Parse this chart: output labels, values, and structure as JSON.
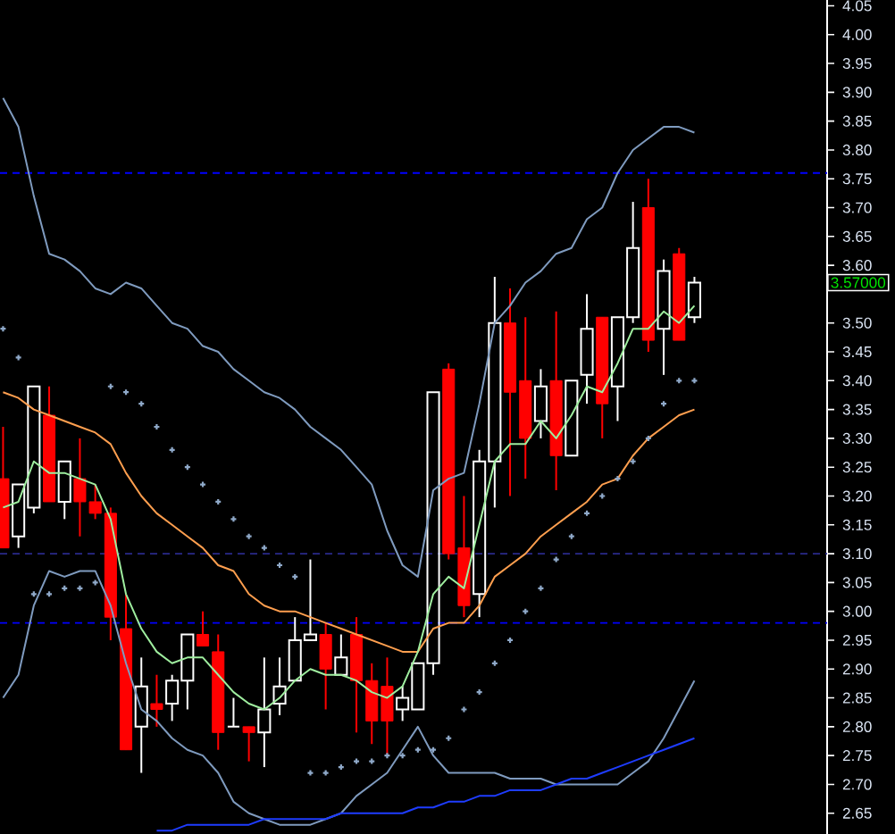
{
  "chart_data": {
    "type": "candlestick",
    "categories": [
      null,
      null,
      null,
      null,
      null,
      null,
      null,
      null,
      null,
      null,
      null,
      null,
      null,
      null,
      null,
      null,
      null,
      null,
      null,
      null,
      null,
      null,
      null,
      null,
      null,
      null,
      null,
      null,
      null,
      null,
      null,
      null,
      null,
      null,
      null,
      null,
      null,
      null,
      null,
      null,
      null,
      null,
      null,
      null,
      null,
      null
    ],
    "ohlc": [
      [
        3.23,
        3.32,
        3.11,
        3.11
      ],
      [
        3.13,
        3.22,
        3.11,
        3.22
      ],
      [
        3.18,
        3.39,
        3.17,
        3.39
      ],
      [
        3.34,
        3.39,
        3.19,
        3.19
      ],
      [
        3.19,
        3.26,
        3.16,
        3.26
      ],
      [
        3.23,
        3.3,
        3.13,
        3.19
      ],
      [
        3.19,
        3.22,
        3.16,
        3.17
      ],
      [
        3.17,
        3.18,
        2.95,
        2.99
      ],
      [
        2.97,
        3.03,
        2.76,
        2.76
      ],
      [
        2.8,
        2.92,
        2.72,
        2.87
      ],
      [
        2.84,
        2.89,
        2.8,
        2.83
      ],
      [
        2.84,
        2.89,
        2.81,
        2.88
      ],
      [
        2.88,
        2.96,
        2.83,
        2.96
      ],
      [
        2.96,
        3.0,
        2.94,
        2.94
      ],
      [
        2.93,
        2.96,
        2.76,
        2.79
      ],
      [
        2.8,
        2.85,
        2.8,
        2.8
      ],
      [
        2.8,
        2.8,
        2.74,
        2.79
      ],
      [
        2.79,
        2.92,
        2.73,
        2.83
      ],
      [
        2.84,
        2.92,
        2.82,
        2.87
      ],
      [
        2.88,
        2.99,
        2.88,
        2.95
      ],
      [
        2.95,
        3.09,
        2.95,
        2.96
      ],
      [
        2.96,
        2.98,
        2.83,
        2.9
      ],
      [
        2.89,
        2.96,
        2.89,
        2.92
      ],
      [
        2.96,
        2.99,
        2.79,
        2.88
      ],
      [
        2.88,
        2.91,
        2.77,
        2.81
      ],
      [
        2.87,
        2.92,
        2.75,
        2.81
      ],
      [
        2.83,
        2.87,
        2.81,
        2.85
      ],
      [
        2.83,
        2.91,
        2.83,
        2.91
      ],
      [
        2.91,
        3.38,
        2.89,
        3.38
      ],
      [
        3.42,
        3.43,
        3.09,
        3.1
      ],
      [
        3.11,
        3.2,
        2.99,
        3.01
      ],
      [
        3.03,
        3.28,
        2.99,
        3.26
      ],
      [
        3.26,
        3.58,
        3.18,
        3.5
      ],
      [
        3.5,
        3.56,
        3.2,
        3.38
      ],
      [
        3.4,
        3.51,
        3.23,
        3.3
      ],
      [
        3.33,
        3.42,
        3.3,
        3.39
      ],
      [
        3.4,
        3.52,
        3.21,
        3.27
      ],
      [
        3.27,
        3.4,
        3.27,
        3.4
      ],
      [
        3.41,
        3.55,
        3.36,
        3.49
      ],
      [
        3.51,
        3.51,
        3.3,
        3.36
      ],
      [
        3.39,
        3.51,
        3.33,
        3.51
      ],
      [
        3.51,
        3.71,
        3.5,
        3.63
      ],
      [
        3.7,
        3.75,
        3.45,
        3.47
      ],
      [
        3.49,
        3.61,
        3.41,
        3.59
      ],
      [
        3.62,
        3.63,
        3.47,
        3.47
      ],
      [
        3.51,
        3.58,
        3.5,
        3.57
      ]
    ],
    "colors": [
      "#ff0000",
      "#ffffff",
      "#ffffff",
      "#ff0000",
      "#ffffff",
      "#ff0000",
      "#ff0000",
      "#ff0000",
      "#ff0000",
      "#ffffff",
      "#ff0000",
      "#ffffff",
      "#ffffff",
      "#ff0000",
      "#ff0000",
      "#ffffff",
      "#ff0000",
      "#ffffff",
      "#ffffff",
      "#ffffff",
      "#ffffff",
      "#ff0000",
      "#ffffff",
      "#ff0000",
      "#ff0000",
      "#ff0000",
      "#ffffff",
      "#ffffff",
      "#ffffff",
      "#ff0000",
      "#ff0000",
      "#ffffff",
      "#ffffff",
      "#ff0000",
      "#ff0000",
      "#ffffff",
      "#ff0000",
      "#ffffff",
      "#ffffff",
      "#ff0000",
      "#ffffff",
      "#ffffff",
      "#ff0000",
      "#ffffff",
      "#ff0000",
      "#ffffff"
    ],
    "series": [
      {
        "type": "line",
        "color": "#7f9bbf",
        "values": [
          3.89,
          3.84,
          3.72,
          3.62,
          3.61,
          3.59,
          3.56,
          3.55,
          3.57,
          3.56,
          3.53,
          3.5,
          3.49,
          3.46,
          3.45,
          3.42,
          3.4,
          3.38,
          3.37,
          3.35,
          3.32,
          3.3,
          3.28,
          3.25,
          3.22,
          3.14,
          3.08,
          3.06,
          3.21,
          3.23,
          3.24,
          3.36,
          3.5,
          3.53,
          3.57,
          3.59,
          3.62,
          3.63,
          3.68,
          3.7,
          3.76,
          3.8,
          3.82,
          3.84,
          3.84,
          3.83
        ]
      },
      {
        "type": "line",
        "color": "#7f9bbf",
        "values": [
          2.85,
          2.89,
          3.01,
          3.07,
          3.06,
          3.07,
          3.07,
          3.01,
          2.91,
          2.83,
          2.81,
          2.78,
          2.76,
          2.75,
          2.72,
          2.67,
          2.65,
          2.64,
          2.63,
          2.63,
          2.63,
          2.64,
          2.65,
          2.68,
          2.7,
          2.72,
          2.76,
          2.8,
          2.75,
          2.72,
          2.72,
          2.72,
          2.72,
          2.71,
          2.71,
          2.71,
          2.7,
          2.7,
          2.7,
          2.7,
          2.7,
          2.72,
          2.74,
          2.78,
          2.83,
          2.88
        ]
      },
      {
        "type": "line",
        "color": "#ff9f4f",
        "values": [
          3.38,
          3.37,
          3.35,
          3.34,
          3.33,
          3.32,
          3.31,
          3.29,
          3.24,
          3.2,
          3.17,
          3.15,
          3.13,
          3.11,
          3.08,
          3.07,
          3.03,
          3.01,
          3.0,
          3.0,
          2.99,
          2.98,
          2.97,
          2.96,
          2.95,
          2.94,
          2.93,
          2.93,
          2.97,
          2.98,
          2.98,
          3.01,
          3.06,
          3.08,
          3.1,
          3.13,
          3.15,
          3.17,
          3.19,
          3.22,
          3.23,
          3.27,
          3.3,
          3.32,
          3.34,
          3.35
        ]
      },
      {
        "type": "line",
        "color": "#9fee9f",
        "values": [
          3.18,
          3.19,
          3.26,
          3.24,
          3.24,
          3.23,
          3.22,
          3.16,
          3.03,
          2.97,
          2.93,
          2.91,
          2.92,
          2.92,
          2.89,
          2.86,
          2.84,
          2.83,
          2.85,
          2.88,
          2.9,
          2.89,
          2.89,
          2.88,
          2.86,
          2.85,
          2.87,
          2.93,
          3.03,
          3.06,
          3.04,
          3.15,
          3.26,
          3.29,
          3.29,
          3.33,
          3.3,
          3.34,
          3.39,
          3.38,
          3.43,
          3.49,
          3.49,
          3.52,
          3.5,
          3.53
        ]
      },
      {
        "type": "line",
        "color": "#1e3cff",
        "values": [
          null,
          null,
          null,
          null,
          null,
          null,
          null,
          null,
          null,
          null,
          2.62,
          2.62,
          2.63,
          2.63,
          2.63,
          2.63,
          2.63,
          2.64,
          2.64,
          2.64,
          2.64,
          2.64,
          2.65,
          2.65,
          2.65,
          2.65,
          2.65,
          2.66,
          2.66,
          2.67,
          2.67,
          2.68,
          2.68,
          2.69,
          2.69,
          2.69,
          2.7,
          2.71,
          2.71,
          2.72,
          2.73,
          2.74,
          2.75,
          2.76,
          2.77,
          2.78
        ]
      },
      {
        "type": "scatter",
        "color": "#8fa9c9",
        "marker": "cross",
        "values": [
          3.49,
          3.44,
          3.03,
          3.03,
          3.04,
          3.04,
          3.05,
          3.39,
          3.38,
          3.36,
          3.32,
          3.28,
          3.25,
          3.22,
          3.19,
          3.16,
          3.13,
          3.11,
          3.08,
          3.06,
          2.72,
          2.72,
          2.73,
          2.74,
          2.74,
          2.75,
          2.75,
          2.76,
          2.76,
          2.78,
          2.83,
          2.86,
          2.91,
          2.95,
          3.0,
          3.04,
          3.09,
          3.13,
          3.17,
          3.2,
          3.23,
          3.26,
          3.3,
          3.36,
          3.4,
          3.4
        ]
      }
    ],
    "ylim": [
      2.614,
      4.06
    ],
    "yticks": [
      {
        "value": 2.65,
        "label": "2.65"
      },
      {
        "value": 2.7,
        "label": "2.70"
      },
      {
        "value": 2.75,
        "label": "2.75"
      },
      {
        "value": 2.8,
        "label": "2.80"
      },
      {
        "value": 2.85,
        "label": "2.85"
      },
      {
        "value": 2.9,
        "label": "2.90"
      },
      {
        "value": 2.95,
        "label": "2.95"
      },
      {
        "value": 3.0,
        "label": "3.00"
      },
      {
        "value": 3.05,
        "label": "3.05"
      },
      {
        "value": 3.1,
        "label": "3.10"
      },
      {
        "value": 3.15,
        "label": "3.15"
      },
      {
        "value": 3.2,
        "label": "3.20"
      },
      {
        "value": 3.25,
        "label": "3.25"
      },
      {
        "value": 3.3,
        "label": "3.30"
      },
      {
        "value": 3.35,
        "label": "3.35"
      },
      {
        "value": 3.4,
        "label": "3.40"
      },
      {
        "value": 3.45,
        "label": "3.45"
      },
      {
        "value": 3.5,
        "label": "3.50"
      },
      {
        "value": 3.6,
        "label": "3.60"
      },
      {
        "value": 3.65,
        "label": "3.65"
      },
      {
        "value": 3.7,
        "label": "3.70"
      },
      {
        "value": 3.75,
        "label": "3.75"
      },
      {
        "value": 3.8,
        "label": "3.80"
      },
      {
        "value": 3.85,
        "label": "3.85"
      },
      {
        "value": 3.9,
        "label": "3.90"
      },
      {
        "value": 3.95,
        "label": "3.95"
      },
      {
        "value": 4.0,
        "label": "4.00"
      },
      {
        "value": 4.05,
        "label": "4.05"
      }
    ],
    "ref_lines": [
      {
        "axis": "y",
        "value": 3.76,
        "color": "#0000ff",
        "line_style": "dashed"
      },
      {
        "axis": "y",
        "value": 3.1,
        "color": "#2a2a8a",
        "line_style": "dashed"
      },
      {
        "axis": "y",
        "value": 2.98,
        "color": "#0000ff",
        "line_style": "dashed"
      }
    ],
    "annotations": [
      "3.57000"
    ],
    "tick_labels": "y"
  }
}
